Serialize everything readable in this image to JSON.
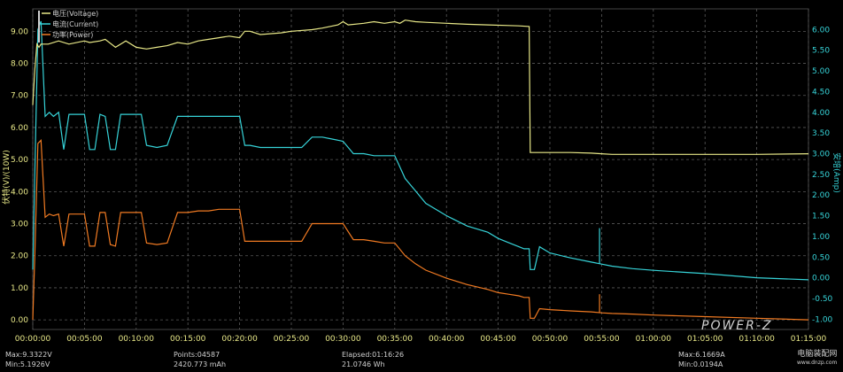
{
  "chart_data": {
    "type": "line",
    "title": "",
    "xlabel": "",
    "ylabel_left": "伏特(V)/(10W)",
    "ylabel_right": "安培(Amp)",
    "xlim": [
      0,
      75
    ],
    "ylim_left": [
      -0.3,
      9.7
    ],
    "ylim_right": [
      -1.25,
      6.5
    ],
    "y_ticks_left": [
      "0.00",
      "1.00",
      "2.00",
      "3.00",
      "4.00",
      "5.00",
      "6.00",
      "7.00",
      "8.00",
      "9.00"
    ],
    "y_ticks_right": [
      "-1.00",
      "-0.50",
      "0.00",
      "0.50",
      "1.00",
      "1.50",
      "2.00",
      "2.50",
      "3.00",
      "3.50",
      "4.00",
      "4.50",
      "5.00",
      "5.50",
      "6.00"
    ],
    "x_ticks": [
      "00:00:00",
      "00:05:00",
      "00:10:00",
      "00:15:00",
      "00:20:00",
      "00:25:00",
      "00:30:00",
      "00:35:00",
      "00:40:00",
      "00:45:00",
      "00:50:00",
      "00:55:00",
      "01:00:00",
      "01:05:00",
      "01:10:00",
      "01:15:00"
    ],
    "grid": true,
    "legend": "top-left",
    "series": [
      {
        "name": "电压(Voltage)",
        "color": "#e8e888",
        "axis": "left",
        "x": [
          0,
          0.2,
          0.4,
          0.6,
          0.8,
          1.5,
          2.5,
          3.5,
          5,
          5.5,
          6.5,
          7,
          8,
          9,
          10,
          11,
          12,
          13,
          14,
          15,
          16,
          17,
          18,
          19,
          20,
          20.5,
          21,
          22,
          24,
          25,
          27,
          28,
          29.5,
          30,
          30.5,
          32,
          33,
          34,
          35,
          35.5,
          36,
          37,
          38,
          40,
          42,
          44,
          46,
          47,
          48,
          48.1,
          50,
          52,
          54,
          55,
          56,
          58,
          60,
          65,
          70,
          75
        ],
        "y": [
          6.7,
          7.8,
          8.6,
          8.5,
          8.6,
          8.6,
          8.7,
          8.6,
          8.7,
          8.65,
          8.7,
          8.75,
          8.5,
          8.7,
          8.5,
          8.45,
          8.5,
          8.55,
          8.65,
          8.6,
          8.7,
          8.75,
          8.8,
          8.85,
          8.8,
          9.0,
          9.0,
          8.9,
          8.95,
          9.0,
          9.05,
          9.1,
          9.2,
          9.3,
          9.2,
          9.25,
          9.3,
          9.25,
          9.3,
          9.25,
          9.35,
          9.3,
          9.28,
          9.25,
          9.22,
          9.2,
          9.18,
          9.17,
          9.15,
          5.22,
          5.22,
          5.22,
          5.2,
          5.18,
          5.16,
          5.16,
          5.16,
          5.16,
          5.16,
          5.18
        ]
      },
      {
        "name": "电流(Current)",
        "color": "#36d3d8",
        "axis": "right",
        "x": [
          0,
          0.2,
          0.5,
          0.8,
          1.2,
          1.6,
          2,
          2.5,
          3,
          3.5,
          4,
          5,
          5.5,
          6,
          6.5,
          7,
          7.5,
          8,
          8.5,
          9,
          9.5,
          10,
          10.5,
          11,
          12,
          13,
          14,
          15,
          16,
          17,
          18,
          19,
          20,
          20.5,
          21,
          22,
          24,
          25,
          26,
          27,
          28,
          29,
          30,
          31,
          32,
          33,
          34,
          35,
          36,
          37,
          38,
          40,
          42,
          44,
          45,
          46,
          47,
          47.5,
          48,
          48.1,
          48.5,
          49,
          50,
          52,
          54,
          55,
          56,
          58,
          60,
          65,
          70,
          75
        ],
        "y": [
          0.2,
          2.5,
          6.0,
          6.2,
          3.9,
          4.0,
          3.9,
          4.0,
          3.1,
          3.95,
          3.95,
          3.95,
          3.1,
          3.1,
          3.95,
          3.9,
          3.1,
          3.1,
          3.95,
          3.95,
          3.95,
          3.95,
          3.95,
          3.2,
          3.15,
          3.2,
          3.9,
          3.9,
          3.9,
          3.9,
          3.9,
          3.9,
          3.9,
          3.2,
          3.2,
          3.15,
          3.15,
          3.15,
          3.15,
          3.4,
          3.4,
          3.35,
          3.3,
          3.0,
          3.0,
          2.95,
          2.95,
          2.95,
          2.4,
          2.1,
          1.8,
          1.5,
          1.25,
          1.1,
          0.95,
          0.85,
          0.75,
          0.7,
          0.7,
          0.2,
          0.2,
          0.75,
          0.6,
          0.48,
          0.38,
          0.33,
          0.28,
          0.22,
          0.18,
          0.1,
          0.0,
          -0.05
        ]
      },
      {
        "name": "功率(Power)",
        "color": "#f07a22",
        "axis": "left",
        "x": [
          0,
          0.2,
          0.5,
          0.8,
          1.2,
          1.6,
          2,
          2.5,
          3,
          3.5,
          4,
          5,
          5.5,
          6,
          6.5,
          7,
          7.5,
          8,
          8.5,
          9,
          9.5,
          10,
          10.5,
          11,
          12,
          13,
          14,
          15,
          16,
          17,
          18,
          19,
          20,
          20.5,
          21,
          22,
          24,
          25,
          26,
          27,
          28,
          29,
          30,
          31,
          32,
          33,
          34,
          35,
          36,
          37,
          38,
          40,
          42,
          44,
          45,
          46,
          47,
          47.5,
          48,
          48.1,
          48.5,
          49,
          50,
          52,
          54,
          55,
          56,
          58,
          60,
          65,
          70,
          75
        ],
        "y": [
          0.0,
          2.0,
          5.5,
          5.6,
          3.2,
          3.3,
          3.25,
          3.3,
          2.3,
          3.3,
          3.3,
          3.3,
          2.3,
          2.3,
          3.35,
          3.35,
          2.35,
          2.3,
          3.35,
          3.35,
          3.35,
          3.35,
          3.35,
          2.4,
          2.35,
          2.4,
          3.35,
          3.35,
          3.4,
          3.4,
          3.45,
          3.45,
          3.45,
          2.45,
          2.45,
          2.45,
          2.45,
          2.45,
          2.45,
          3.0,
          3.0,
          3.0,
          3.0,
          2.5,
          2.5,
          2.45,
          2.4,
          2.4,
          2.0,
          1.75,
          1.55,
          1.3,
          1.1,
          0.95,
          0.85,
          0.8,
          0.75,
          0.7,
          0.7,
          0.05,
          0.05,
          0.35,
          0.32,
          0.28,
          0.25,
          0.22,
          0.2,
          0.18,
          0.15,
          0.1,
          0.05,
          0.0
        ]
      }
    ],
    "spikes": [
      {
        "series": "电流(Current)",
        "x": 54.8,
        "y": 1.2
      },
      {
        "series": "功率(Power)",
        "x": 54.8,
        "y": 0.8
      }
    ]
  },
  "footer": {
    "max_v": "Max:9.3322V",
    "min_v": "Min:5.1926V",
    "points": "Points:04587",
    "mah": "2420.773 mAh",
    "elapsed": "Elapsed:01:16:26",
    "wh": "21.0746 Wh",
    "max_a": "Max:6.1669A",
    "min_a": "Min:0.0194A"
  },
  "brand": "POWER-Z",
  "watermark": {
    "line1": "电脑装配网",
    "line2": "www.dnzp.com"
  },
  "colors": {
    "grid": "#5a5a5a",
    "axis_left": "#e8e888",
    "axis_right": "#36d3d8",
    "x_axis": "#e8e888"
  }
}
